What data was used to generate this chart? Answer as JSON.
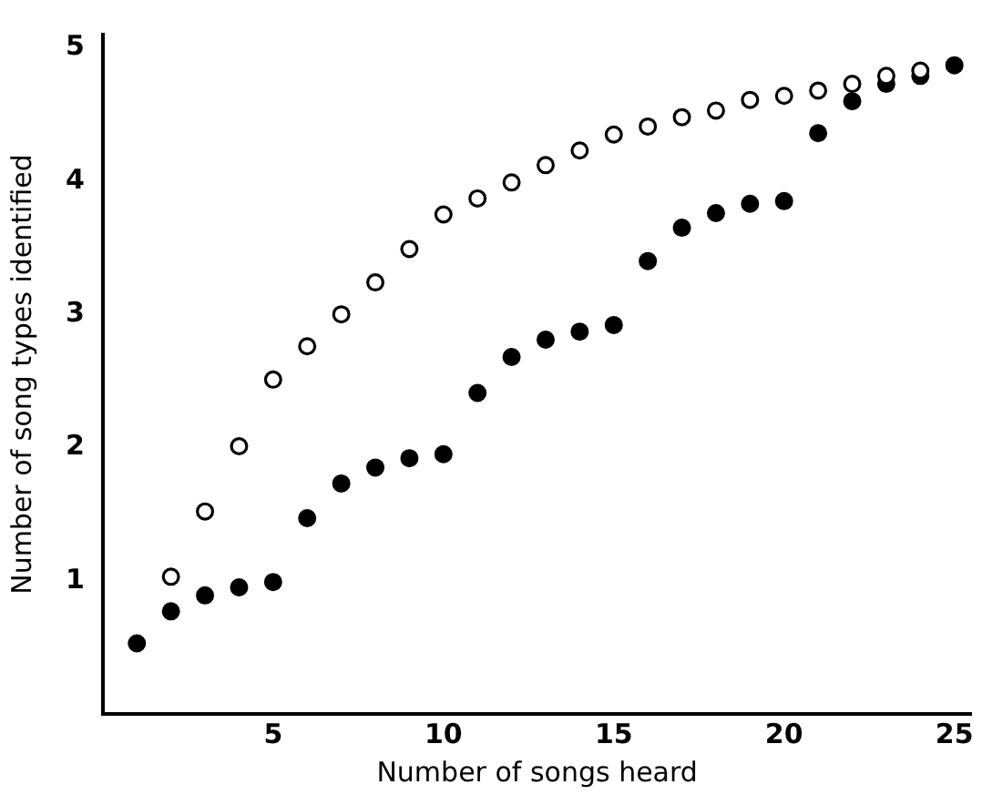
{
  "chart_data": {
    "type": "scatter",
    "xlabel": "Number of songs heard",
    "ylabel": "Number of song types identified",
    "xlim": [
      0,
      25.5
    ],
    "ylim": [
      0,
      5.1
    ],
    "xticks": [
      5,
      10,
      15,
      20,
      25
    ],
    "yticks": [
      1,
      2,
      3,
      4,
      5
    ],
    "grid": false,
    "legend": false,
    "marker": "circle",
    "series": [
      {
        "color": "#ffffff",
        "x": [
          2,
          3,
          4,
          5,
          6,
          7,
          8,
          9,
          10,
          11,
          12,
          13,
          14,
          15,
          16,
          17,
          18,
          19,
          20,
          21,
          22,
          23,
          24
        ],
        "values": [
          1.03,
          1.52,
          2.01,
          2.51,
          2.76,
          3.0,
          3.24,
          3.49,
          3.75,
          3.87,
          3.99,
          4.12,
          4.23,
          4.35,
          4.41,
          4.48,
          4.53,
          4.61,
          4.64,
          4.68,
          4.73,
          4.79,
          4.83
        ]
      },
      {
        "color": "#000000",
        "x": [
          1,
          2,
          3,
          4,
          5,
          6,
          7,
          8,
          9,
          10,
          11,
          12,
          13,
          14,
          15,
          16,
          17,
          18,
          19,
          20,
          21,
          22,
          23,
          24,
          25
        ],
        "values": [
          0.53,
          0.77,
          0.89,
          0.95,
          0.99,
          1.47,
          1.73,
          1.85,
          1.92,
          1.95,
          2.41,
          2.68,
          2.81,
          2.87,
          2.92,
          3.4,
          3.65,
          3.76,
          3.83,
          3.85,
          4.36,
          4.6,
          4.73,
          4.79,
          4.87
        ]
      }
    ]
  }
}
